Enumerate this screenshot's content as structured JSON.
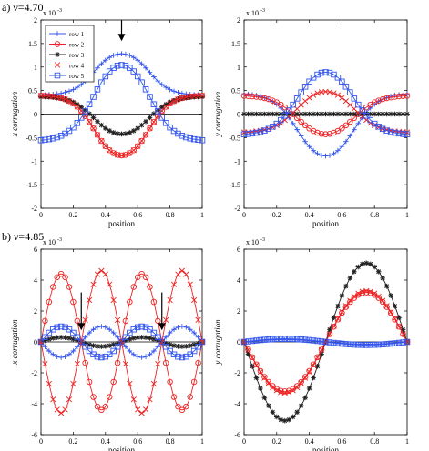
{
  "colors": {
    "row1": "#3355ee",
    "row2": "#ee2222",
    "row3": "#222222",
    "row4": "#ee2222",
    "row5": "#3355ee"
  },
  "section_labels": [
    "a) ν=4.70",
    "b) ν=4.85"
  ],
  "legend": [
    {
      "label": "row 1",
      "marker": "plus",
      "color": "#3355ee"
    },
    {
      "label": "row 2",
      "marker": "circle",
      "color": "#ee2222"
    },
    {
      "label": "row 3",
      "marker": "star",
      "color": "#222222"
    },
    {
      "label": "row 4",
      "marker": "x",
      "color": "#ee2222"
    },
    {
      "label": "row 5",
      "marker": "square",
      "color": "#3355ee"
    }
  ],
  "chart_data": [
    {
      "panel": "a-x",
      "type": "line",
      "xlabel": "position",
      "ylabel": "x corrugation",
      "exponent_label": "x 10",
      "exponent_power": "-3",
      "xlim": [
        0,
        1
      ],
      "ylim": [
        -2,
        2
      ],
      "xticks": [
        0,
        0.2,
        0.4,
        0.6,
        0.8,
        1
      ],
      "xtick_labels": [
        "0",
        "0.2",
        "0.4",
        "0.6",
        "0.8",
        "1"
      ],
      "yticks": [
        -2,
        -1.5,
        -1,
        -0.5,
        0,
        0.5,
        1,
        1.5,
        2
      ],
      "ytick_labels": [
        "-2",
        "-1.5",
        "-1",
        "-0.5",
        "0",
        "0.5",
        "1",
        "1.5",
        "2"
      ],
      "legend": true,
      "annotation_arrows": [
        {
          "x": 0.5,
          "y_from": 2.0,
          "y_to": 1.55
        }
      ],
      "series": [
        {
          "name": "row 1",
          "marker": "plus",
          "color": "#3355ee",
          "shape": "bump",
          "base": 0.4,
          "peak": 1.42,
          "w": 0.065
        },
        {
          "name": "row 2",
          "marker": "circle",
          "color": "#ee2222",
          "shape": "bump",
          "base": 0.4,
          "peak": -1.08,
          "w": 0.065
        },
        {
          "name": "row 3",
          "marker": "star",
          "color": "#222222",
          "shape": "bump",
          "base": 0.38,
          "peak": -0.58,
          "w": 0.07
        },
        {
          "name": "row 4",
          "marker": "x",
          "color": "#ee2222",
          "shape": "bump",
          "base": 0.4,
          "peak": -1.08,
          "w": 0.065
        },
        {
          "name": "row 5",
          "marker": "square",
          "color": "#3355ee",
          "shape": "bump",
          "base": -0.58,
          "peak": 1.42,
          "w": 0.075
        }
      ]
    },
    {
      "panel": "a-y",
      "type": "line",
      "xlabel": "position",
      "ylabel": "y corrugation",
      "exponent_label": "x 10",
      "exponent_power": "-3",
      "xlim": [
        0,
        1
      ],
      "ylim": [
        -2,
        2
      ],
      "xticks": [
        0,
        0.2,
        0.4,
        0.6,
        0.8,
        1
      ],
      "xtick_labels": [
        "0",
        "0.2",
        "0.4",
        "0.6",
        "0.8",
        "1"
      ],
      "yticks": [
        -2,
        -1.5,
        -1,
        -0.5,
        0,
        0.5,
        1,
        1.5,
        2
      ],
      "ytick_labels": [
        "-2",
        "-1.5",
        "-1",
        "-0.5",
        "0",
        "0.5",
        "1",
        "1.5",
        "2"
      ],
      "legend": false,
      "series": [
        {
          "name": "row 1",
          "marker": "plus",
          "color": "#3355ee",
          "shape": "bump",
          "base": 0.45,
          "peak": -1.2,
          "w": 0.075
        },
        {
          "name": "row 2",
          "marker": "circle",
          "color": "#ee2222",
          "shape": "bump",
          "base": 0.4,
          "peak": -0.62,
          "w": 0.075
        },
        {
          "name": "row 3",
          "marker": "star",
          "color": "#222222",
          "shape": "flat",
          "base": 0.0
        },
        {
          "name": "row 4",
          "marker": "x",
          "color": "#ee2222",
          "shape": "bump",
          "base": -0.4,
          "peak": 0.68,
          "w": 0.075
        },
        {
          "name": "row 5",
          "marker": "square",
          "color": "#3355ee",
          "shape": "bump",
          "base": -0.45,
          "peak": 1.2,
          "w": 0.075
        }
      ]
    },
    {
      "panel": "b-x",
      "type": "line",
      "xlabel": "position",
      "ylabel": "x corrugation",
      "exponent_label": "x 10",
      "exponent_power": "-3",
      "xlim": [
        0,
        1
      ],
      "ylim": [
        -6,
        6
      ],
      "xticks": [
        0,
        0.2,
        0.4,
        0.6,
        0.8,
        1
      ],
      "xtick_labels": [
        "0",
        "0.2",
        "0.4",
        "0.6",
        "0.8",
        "1"
      ],
      "yticks": [
        -6,
        -4,
        -2,
        0,
        2,
        4,
        6
      ],
      "ytick_labels": [
        "-6",
        "-4",
        "-2",
        "0",
        "2",
        "4",
        "6"
      ],
      "legend": false,
      "annotation_arrows": [
        {
          "x": 0.25,
          "y_from": 3.2,
          "y_to": 0.75
        },
        {
          "x": 0.75,
          "y_from": 3.2,
          "y_to": 0.75
        }
      ],
      "series": [
        {
          "name": "row 1",
          "marker": "plus",
          "color": "#3355ee",
          "shape": "wave2",
          "amp": -1.0
        },
        {
          "name": "row 2",
          "marker": "circle",
          "color": "#ee2222",
          "shape": "wave2",
          "amp": 4.4
        },
        {
          "name": "row 3",
          "marker": "star",
          "color": "#222222",
          "shape": "wave2",
          "amp": 0.3
        },
        {
          "name": "row 4",
          "marker": "x",
          "color": "#ee2222",
          "shape": "wave2",
          "amp": -4.6
        },
        {
          "name": "row 5",
          "marker": "square",
          "color": "#3355ee",
          "shape": "wave2",
          "amp": 1.0
        }
      ]
    },
    {
      "panel": "b-y",
      "type": "line",
      "xlabel": "position",
      "ylabel": "y corrugation",
      "exponent_label": "x 10",
      "exponent_power": "-3",
      "xlim": [
        0,
        1
      ],
      "ylim": [
        -6,
        6
      ],
      "xticks": [
        0,
        0.2,
        0.4,
        0.6,
        0.8,
        1
      ],
      "xtick_labels": [
        "0",
        "0.2",
        "0.4",
        "0.6",
        "0.8",
        "1"
      ],
      "yticks": [
        -6,
        -4,
        -2,
        0,
        2,
        4,
        6
      ],
      "ytick_labels": [
        "-6",
        "-4",
        "-2",
        "0",
        "2",
        "4",
        "6"
      ],
      "legend": false,
      "series": [
        {
          "name": "row 1",
          "marker": "plus",
          "color": "#3355ee",
          "shape": "wave1",
          "amp": -0.15
        },
        {
          "name": "row 2",
          "marker": "circle",
          "color": "#ee2222",
          "shape": "wave1",
          "amp": 3.2
        },
        {
          "name": "row 3",
          "marker": "star",
          "color": "#222222",
          "shape": "wave1",
          "amp": 5.1
        },
        {
          "name": "row 4",
          "marker": "x",
          "color": "#ee2222",
          "shape": "wave1",
          "amp": 3.3
        },
        {
          "name": "row 5",
          "marker": "square",
          "color": "#3355ee",
          "shape": "wave1",
          "amp": -0.2
        }
      ]
    }
  ]
}
